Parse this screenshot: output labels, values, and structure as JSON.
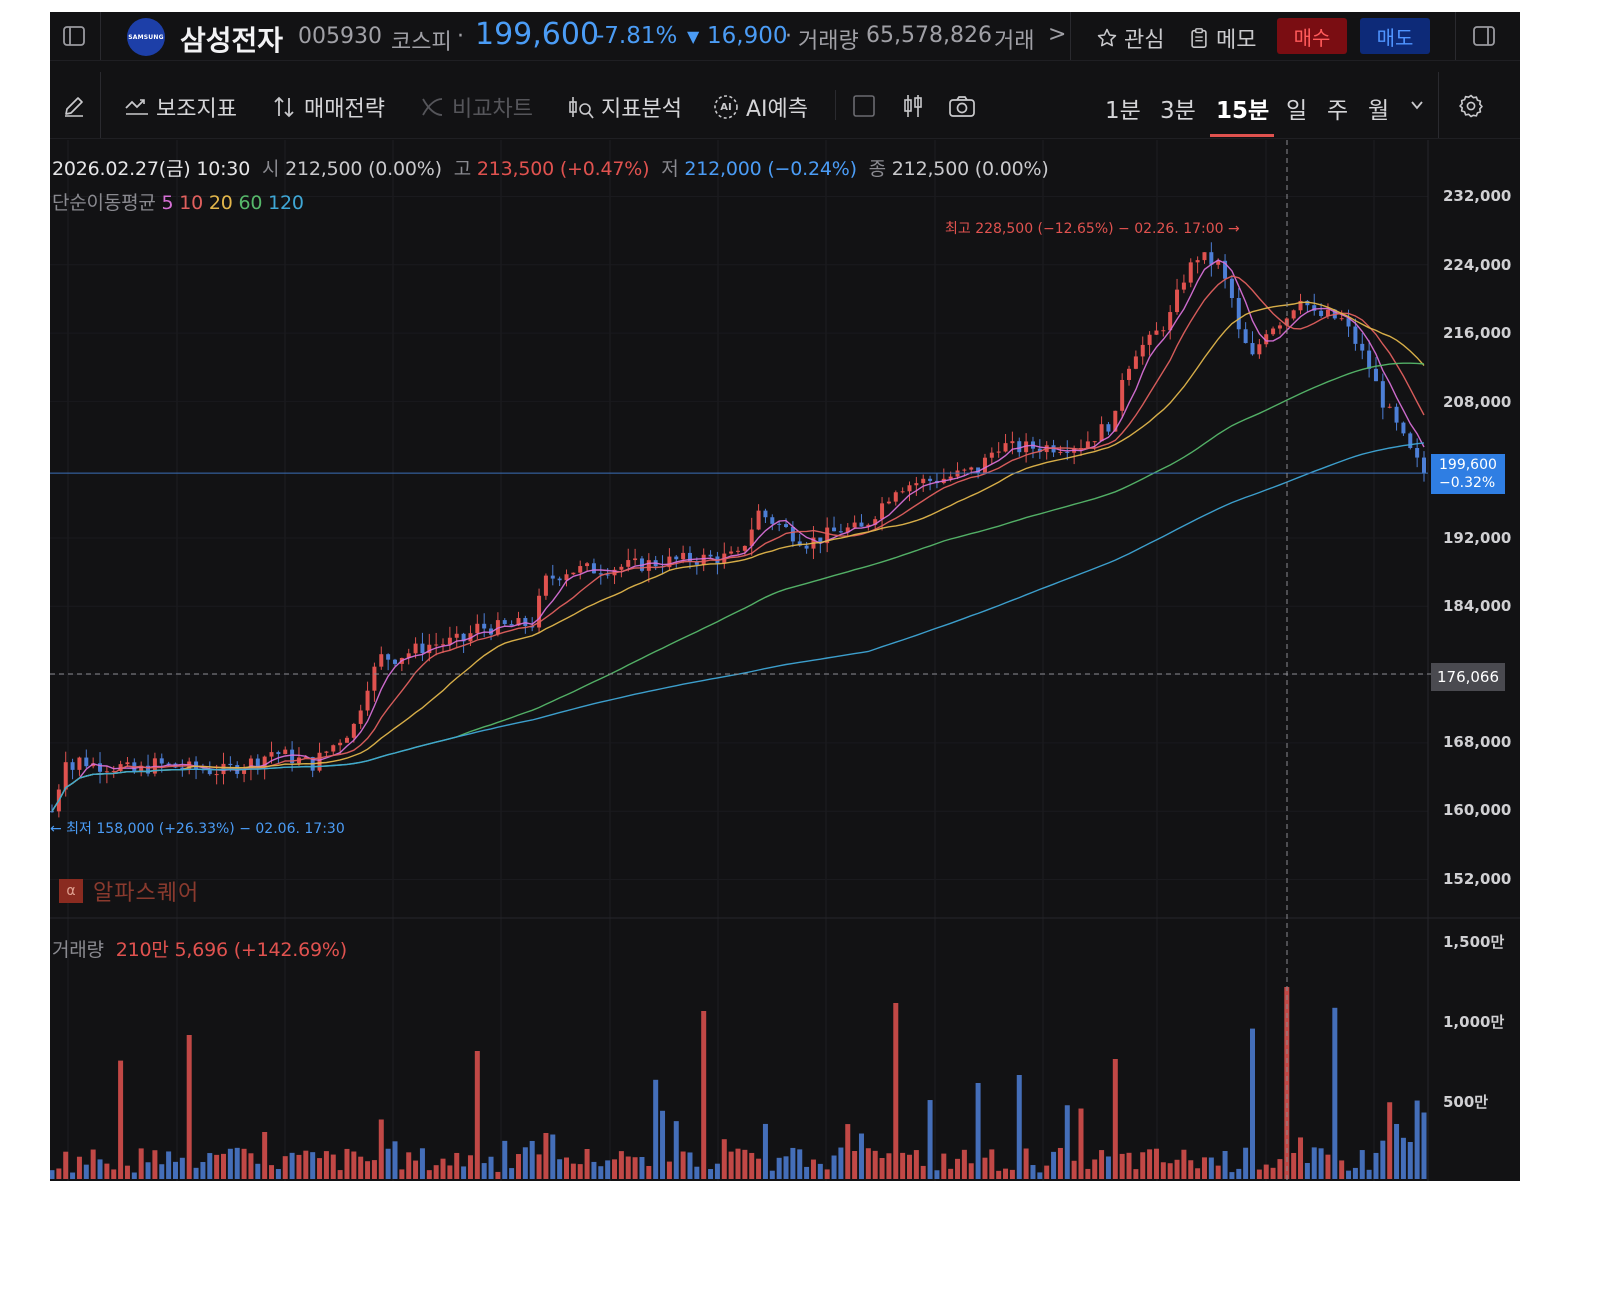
{
  "header": {
    "logo_text": "SAMSUNG",
    "name": "삼성전자",
    "code": "005930",
    "market": "코스피",
    "sep": "·",
    "price": "199,600",
    "change_pct": "-7.81%",
    "change_arrow": "▼",
    "change_abs": "16,900",
    "volume_label": "거래량",
    "volume_value": "65,578,826",
    "amount_label": "거래",
    "more": ">",
    "favorite_label": "관심",
    "memo_label": "메모",
    "buy_label": "매수",
    "sell_label": "매도"
  },
  "toolbar": {
    "indicators": "보조지표",
    "strategy": "매매전략",
    "compare": "비교차트",
    "analysis": "지표분석",
    "ai_badge": "AI",
    "ai_predict": "AI예측",
    "periods": [
      "1분",
      "3분",
      "15분",
      "일",
      "주",
      "월"
    ],
    "active_period": "15분"
  },
  "ohlc": {
    "datetime": "2026.02.27(금) 10:30",
    "open_label": "시",
    "open": "212,500 (0.00%)",
    "high_label": "고",
    "high": "213,500 (+0.47%)",
    "low_label": "저",
    "low": "212,000 (−0.24%)",
    "close_label": "종",
    "close": "212,500 (0.00%)"
  },
  "ma": {
    "label": "단순이동평균",
    "periods": [
      "5",
      "10",
      "20",
      "60",
      "120"
    ],
    "colors": [
      "#d670d6",
      "#e0605e",
      "#e2b64b",
      "#56b86a",
      "#3fa7d6"
    ]
  },
  "annotations": {
    "high": "최고 228,500 (−12.65%) − 02.26. 17:00 →",
    "low": "← 최저 158,000 (+26.33%) − 02.06. 17:30"
  },
  "price_tags": {
    "current_price": "199,600",
    "current_pct": "−0.32%",
    "crosshair": "176,066"
  },
  "watermark": {
    "badge": "α",
    "text": "알파스퀘어"
  },
  "volume_info": {
    "label": "거래량",
    "value": "210만 5,696 (+142.69%)"
  },
  "colors": {
    "up": "#e0524f",
    "down": "#4d7fd6",
    "price_blue": "#4b9cf5",
    "buy_bg": "#7a0d12",
    "sell_bg": "#0d2a78",
    "background": "#121214"
  },
  "chart_data": {
    "type": "candlestick",
    "interval": "15분",
    "y_axis": {
      "ticks": [
        "232,000",
        "224,000",
        "216,000",
        "208,000",
        "192,000",
        "184,000",
        "176,000",
        "168,000",
        "160,000",
        "152,000"
      ],
      "range": [
        148500,
        235500
      ]
    },
    "volume_axis": {
      "ticks": [
        "1,500만",
        "1,000만",
        "500만"
      ]
    },
    "price_path": [
      [
        0,
        160000
      ],
      [
        1,
        163000
      ],
      [
        2,
        166500
      ],
      [
        3,
        165000
      ],
      [
        4,
        166000
      ],
      [
        6,
        165500
      ],
      [
        10,
        165200
      ],
      [
        12,
        164500
      ],
      [
        15,
        165500
      ],
      [
        20,
        165000
      ],
      [
        25,
        164700
      ],
      [
        30,
        166000
      ],
      [
        32,
        167000
      ],
      [
        38,
        165500
      ],
      [
        40,
        167000
      ],
      [
        44,
        170000
      ],
      [
        46,
        175000
      ],
      [
        48,
        178000
      ],
      [
        50,
        178000
      ],
      [
        55,
        179500
      ],
      [
        60,
        180000
      ],
      [
        62,
        181500
      ],
      [
        65,
        181500
      ],
      [
        70,
        182000
      ],
      [
        72,
        187000
      ],
      [
        75,
        188200
      ],
      [
        80,
        188400
      ],
      [
        85,
        188800
      ],
      [
        90,
        189300
      ],
      [
        95,
        189600
      ],
      [
        100,
        189800
      ],
      [
        103,
        195000
      ],
      [
        105,
        194000
      ],
      [
        108,
        192500
      ],
      [
        110,
        191500
      ],
      [
        112,
        192000
      ],
      [
        115,
        193000
      ],
      [
        118,
        193000
      ],
      [
        120,
        195000
      ],
      [
        123,
        198000
      ],
      [
        126,
        198500
      ],
      [
        130,
        199000
      ],
      [
        135,
        200000
      ],
      [
        138,
        203000
      ],
      [
        140,
        202500
      ],
      [
        145,
        202700
      ],
      [
        150,
        203000
      ],
      [
        152,
        204000
      ],
      [
        155,
        206000
      ],
      [
        156,
        211000
      ],
      [
        158,
        214000
      ],
      [
        160,
        215000
      ],
      [
        163,
        218000
      ],
      [
        165,
        222500
      ],
      [
        167,
        225000
      ],
      [
        170,
        224000
      ],
      [
        172,
        220000
      ],
      [
        173,
        216000
      ],
      [
        175,
        213000
      ],
      [
        177,
        216500
      ],
      [
        180,
        218000
      ],
      [
        182,
        220500
      ],
      [
        184,
        218000
      ],
      [
        186,
        218000
      ],
      [
        188,
        217500
      ],
      [
        190,
        215000
      ],
      [
        192,
        212000
      ],
      [
        194,
        208000
      ],
      [
        196,
        205000
      ],
      [
        198,
        202000
      ],
      [
        200,
        199600
      ]
    ],
    "extremes": {
      "high": 228500,
      "high_time": "02.26. 17:00",
      "low": 158000,
      "low_time": "02.06. 17:30"
    },
    "current_price": 199600,
    "crosshair_price": 176066
  }
}
